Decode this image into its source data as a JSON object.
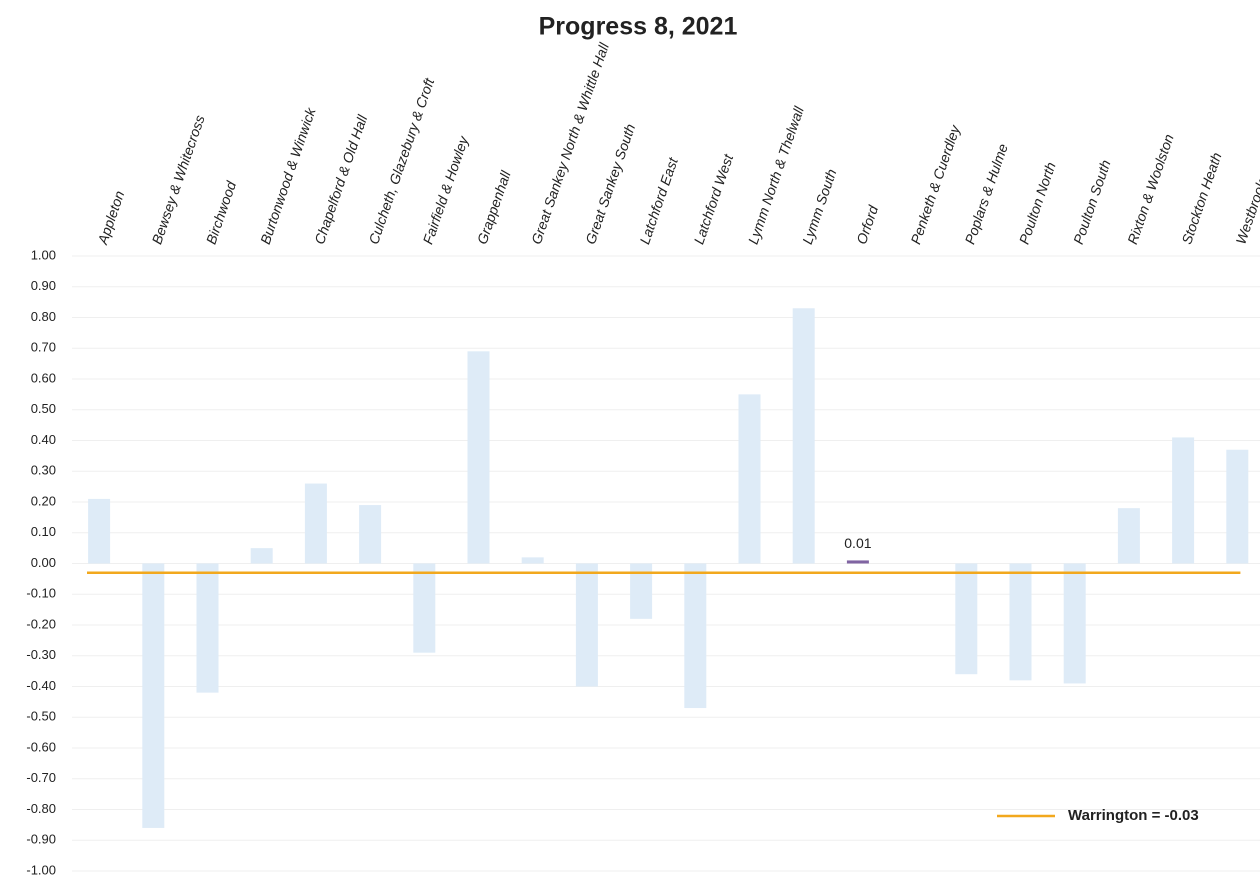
{
  "chart_data": {
    "type": "bar",
    "title": "Progress 8, 2021",
    "categories": [
      "Appleton",
      "Bewsey & Whitecross",
      "Birchwood",
      "Burtonwood & Winwick",
      "Chapelford & Old Hall",
      "Culcheth, Glazebury & Croft",
      "Fairfield & Howley",
      "Grappenhall",
      "Great Sankey North & Whittle Hall",
      "Great Sankey South",
      "Latchford East",
      "Latchford West",
      "Lymm North & Thelwall",
      "Lymm South",
      "Orford",
      "Penketh & Cuerdley",
      "Poplars & Hulme",
      "Poulton North",
      "Poulton South",
      "Rixton & Woolston",
      "Stockton Heath",
      "Westbrook"
    ],
    "values": [
      0.21,
      -0.86,
      -0.42,
      0.05,
      0.26,
      0.19,
      -0.29,
      0.69,
      0.02,
      -0.4,
      -0.18,
      -0.47,
      0.55,
      0.83,
      0.01,
      0.0,
      -0.36,
      -0.38,
      -0.39,
      0.18,
      0.41,
      0.37
    ],
    "colors": [
      "#deebf7",
      "#deebf7",
      "#deebf7",
      "#deebf7",
      "#deebf7",
      "#deebf7",
      "#deebf7",
      "#deebf7",
      "#deebf7",
      "#deebf7",
      "#deebf7",
      "#deebf7",
      "#deebf7",
      "#deebf7",
      "#8064a2",
      "#deebf7",
      "#deebf7",
      "#deebf7",
      "#deebf7",
      "#deebf7",
      "#deebf7",
      "#deebf7"
    ],
    "value_labels": [
      null,
      null,
      null,
      null,
      null,
      null,
      null,
      null,
      null,
      null,
      null,
      null,
      null,
      null,
      "0.01",
      null,
      null,
      null,
      null,
      null,
      null,
      null
    ],
    "ylim": [
      -1.0,
      1.0
    ],
    "yticks": [
      {
        "value": 1.0,
        "label": "1.00"
      },
      {
        "value": 0.9,
        "label": "0.90"
      },
      {
        "value": 0.8,
        "label": "0.80"
      },
      {
        "value": 0.7,
        "label": "0.70"
      },
      {
        "value": 0.6,
        "label": "0.60"
      },
      {
        "value": 0.5,
        "label": "0.50"
      },
      {
        "value": 0.4,
        "label": "0.40"
      },
      {
        "value": 0.3,
        "label": "0.30"
      },
      {
        "value": 0.2,
        "label": "0.20"
      },
      {
        "value": 0.1,
        "label": "0.10"
      },
      {
        "value": 0.0,
        "label": "0.00"
      },
      {
        "value": -0.1,
        "label": "-0.10"
      },
      {
        "value": -0.2,
        "label": "-0.20"
      },
      {
        "value": -0.3,
        "label": "-0.30"
      },
      {
        "value": -0.4,
        "label": "-0.40"
      },
      {
        "value": -0.5,
        "label": "-0.50"
      },
      {
        "value": -0.6,
        "label": "-0.60"
      },
      {
        "value": -0.7,
        "label": "-0.70"
      },
      {
        "value": -0.8,
        "label": "-0.80"
      },
      {
        "value": -0.9,
        "label": "-0.90"
      },
      {
        "value": -1.0,
        "label": "-1.00"
      }
    ],
    "grid": true,
    "reference_line": {
      "label": "Warrington = -0.03",
      "value": -0.03,
      "color": "#f2a81d"
    },
    "legend": "bottom-right"
  }
}
